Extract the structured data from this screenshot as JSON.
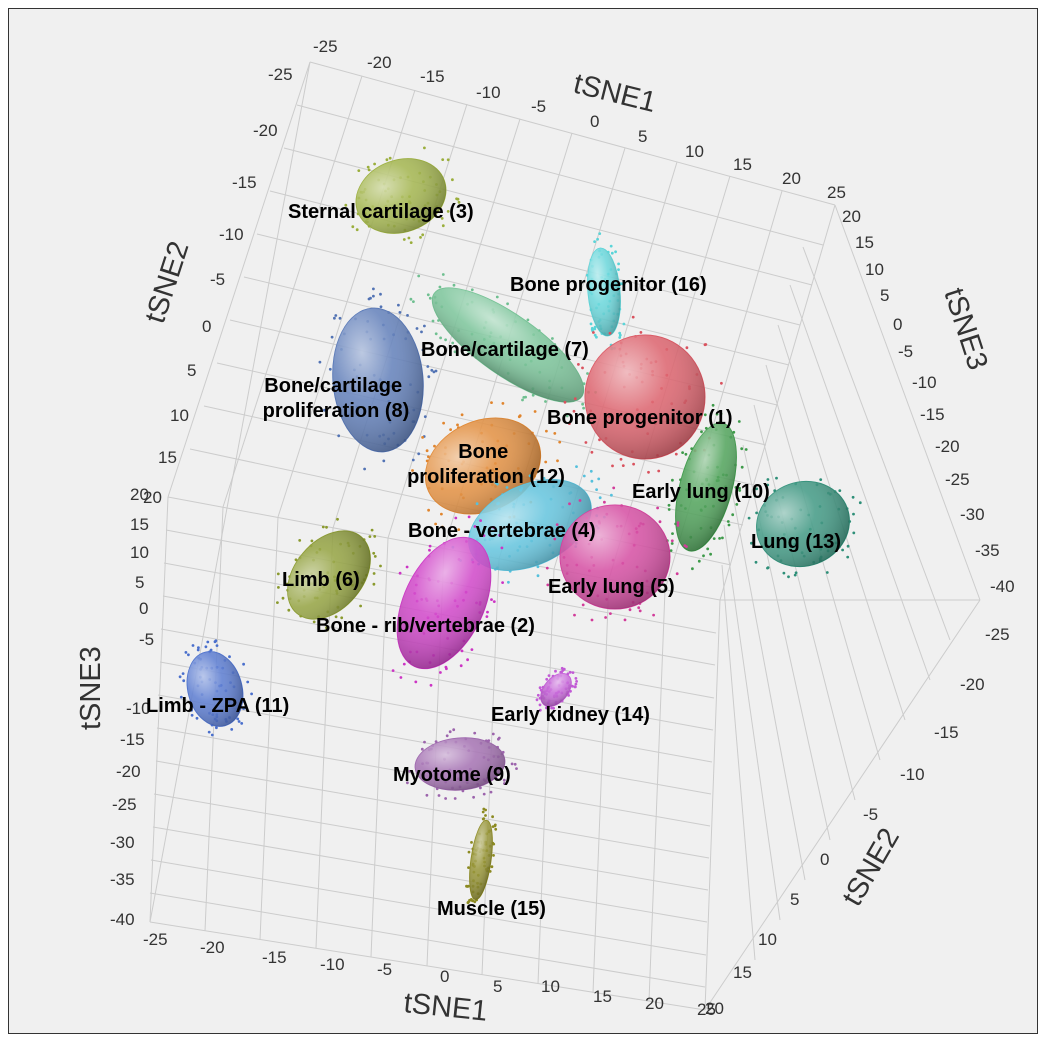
{
  "chart_data": {
    "type": "scatter",
    "dimensions": 3,
    "grid": true,
    "axes": {
      "top_x": {
        "label": "tSNE1",
        "ticks": [
          "-25",
          "-20",
          "-15",
          "-10",
          "-5",
          "0",
          "5",
          "10",
          "15",
          "20",
          "25"
        ]
      },
      "left_y": {
        "label": "tSNE2",
        "ticks": [
          "-25",
          "-20",
          "-15",
          "-10",
          "-5",
          "0",
          "5",
          "10",
          "15",
          "20"
        ]
      },
      "right_z": {
        "label": "tSNE3",
        "ticks": [
          "20",
          "15",
          "10",
          "5",
          "0",
          "-5",
          "-10",
          "-15",
          "-20",
          "-25",
          "-30",
          "-35",
          "-40"
        ]
      },
      "left_z": {
        "label": "tSNE3",
        "ticks": [
          "20",
          "15",
          "10",
          "5",
          "0",
          "-5",
          "-10",
          "-15",
          "-20",
          "-25",
          "-30",
          "-35",
          "-40"
        ]
      },
      "bottom_x": {
        "label": "tSNE1",
        "ticks": [
          "-25",
          "-20",
          "-15",
          "-10",
          "-5",
          "0",
          "5",
          "10",
          "15",
          "20",
          "25"
        ]
      },
      "right_y": {
        "label": "tSNE2",
        "ticks": [
          "-25",
          "-20",
          "-15",
          "-10",
          "-5",
          "0",
          "5",
          "10",
          "15",
          "20"
        ]
      }
    },
    "clusters": [
      {
        "label": "Sternal cartilage (3)",
        "color": "#9aae3c"
      },
      {
        "label": "Bone progenitor (16)",
        "color": "#5ad4d8"
      },
      {
        "label": "Bone/cartilage (7)",
        "color": "#6fbf90"
      },
      {
        "label": "Bone/cartilage proliferation (8)",
        "color": "#5273b4"
      },
      {
        "label": "Bone progenitor (1)",
        "color": "#d9525e"
      },
      {
        "label": "Bone proliferation (12)",
        "color": "#e0852e"
      },
      {
        "label": "Early lung (10)",
        "color": "#3e9a4a"
      },
      {
        "label": "Lung (13)",
        "color": "#2e8f78"
      },
      {
        "label": "Bone - vertebrae (4)",
        "color": "#55c0dc"
      },
      {
        "label": "Early lung (5)",
        "color": "#d23c9a"
      },
      {
        "label": "Limb (6)",
        "color": "#8a9a2e"
      },
      {
        "label": "Bone - rib/vertebrae (2)",
        "color": "#cc34c4"
      },
      {
        "label": "Limb - ZPA (11)",
        "color": "#4a6fcc"
      },
      {
        "label": "Early kidney (14)",
        "color": "#c25ad6"
      },
      {
        "label": "Myotome (9)",
        "color": "#9c64ac"
      },
      {
        "label": "Muscle (15)",
        "color": "#8c8a22"
      }
    ]
  }
}
